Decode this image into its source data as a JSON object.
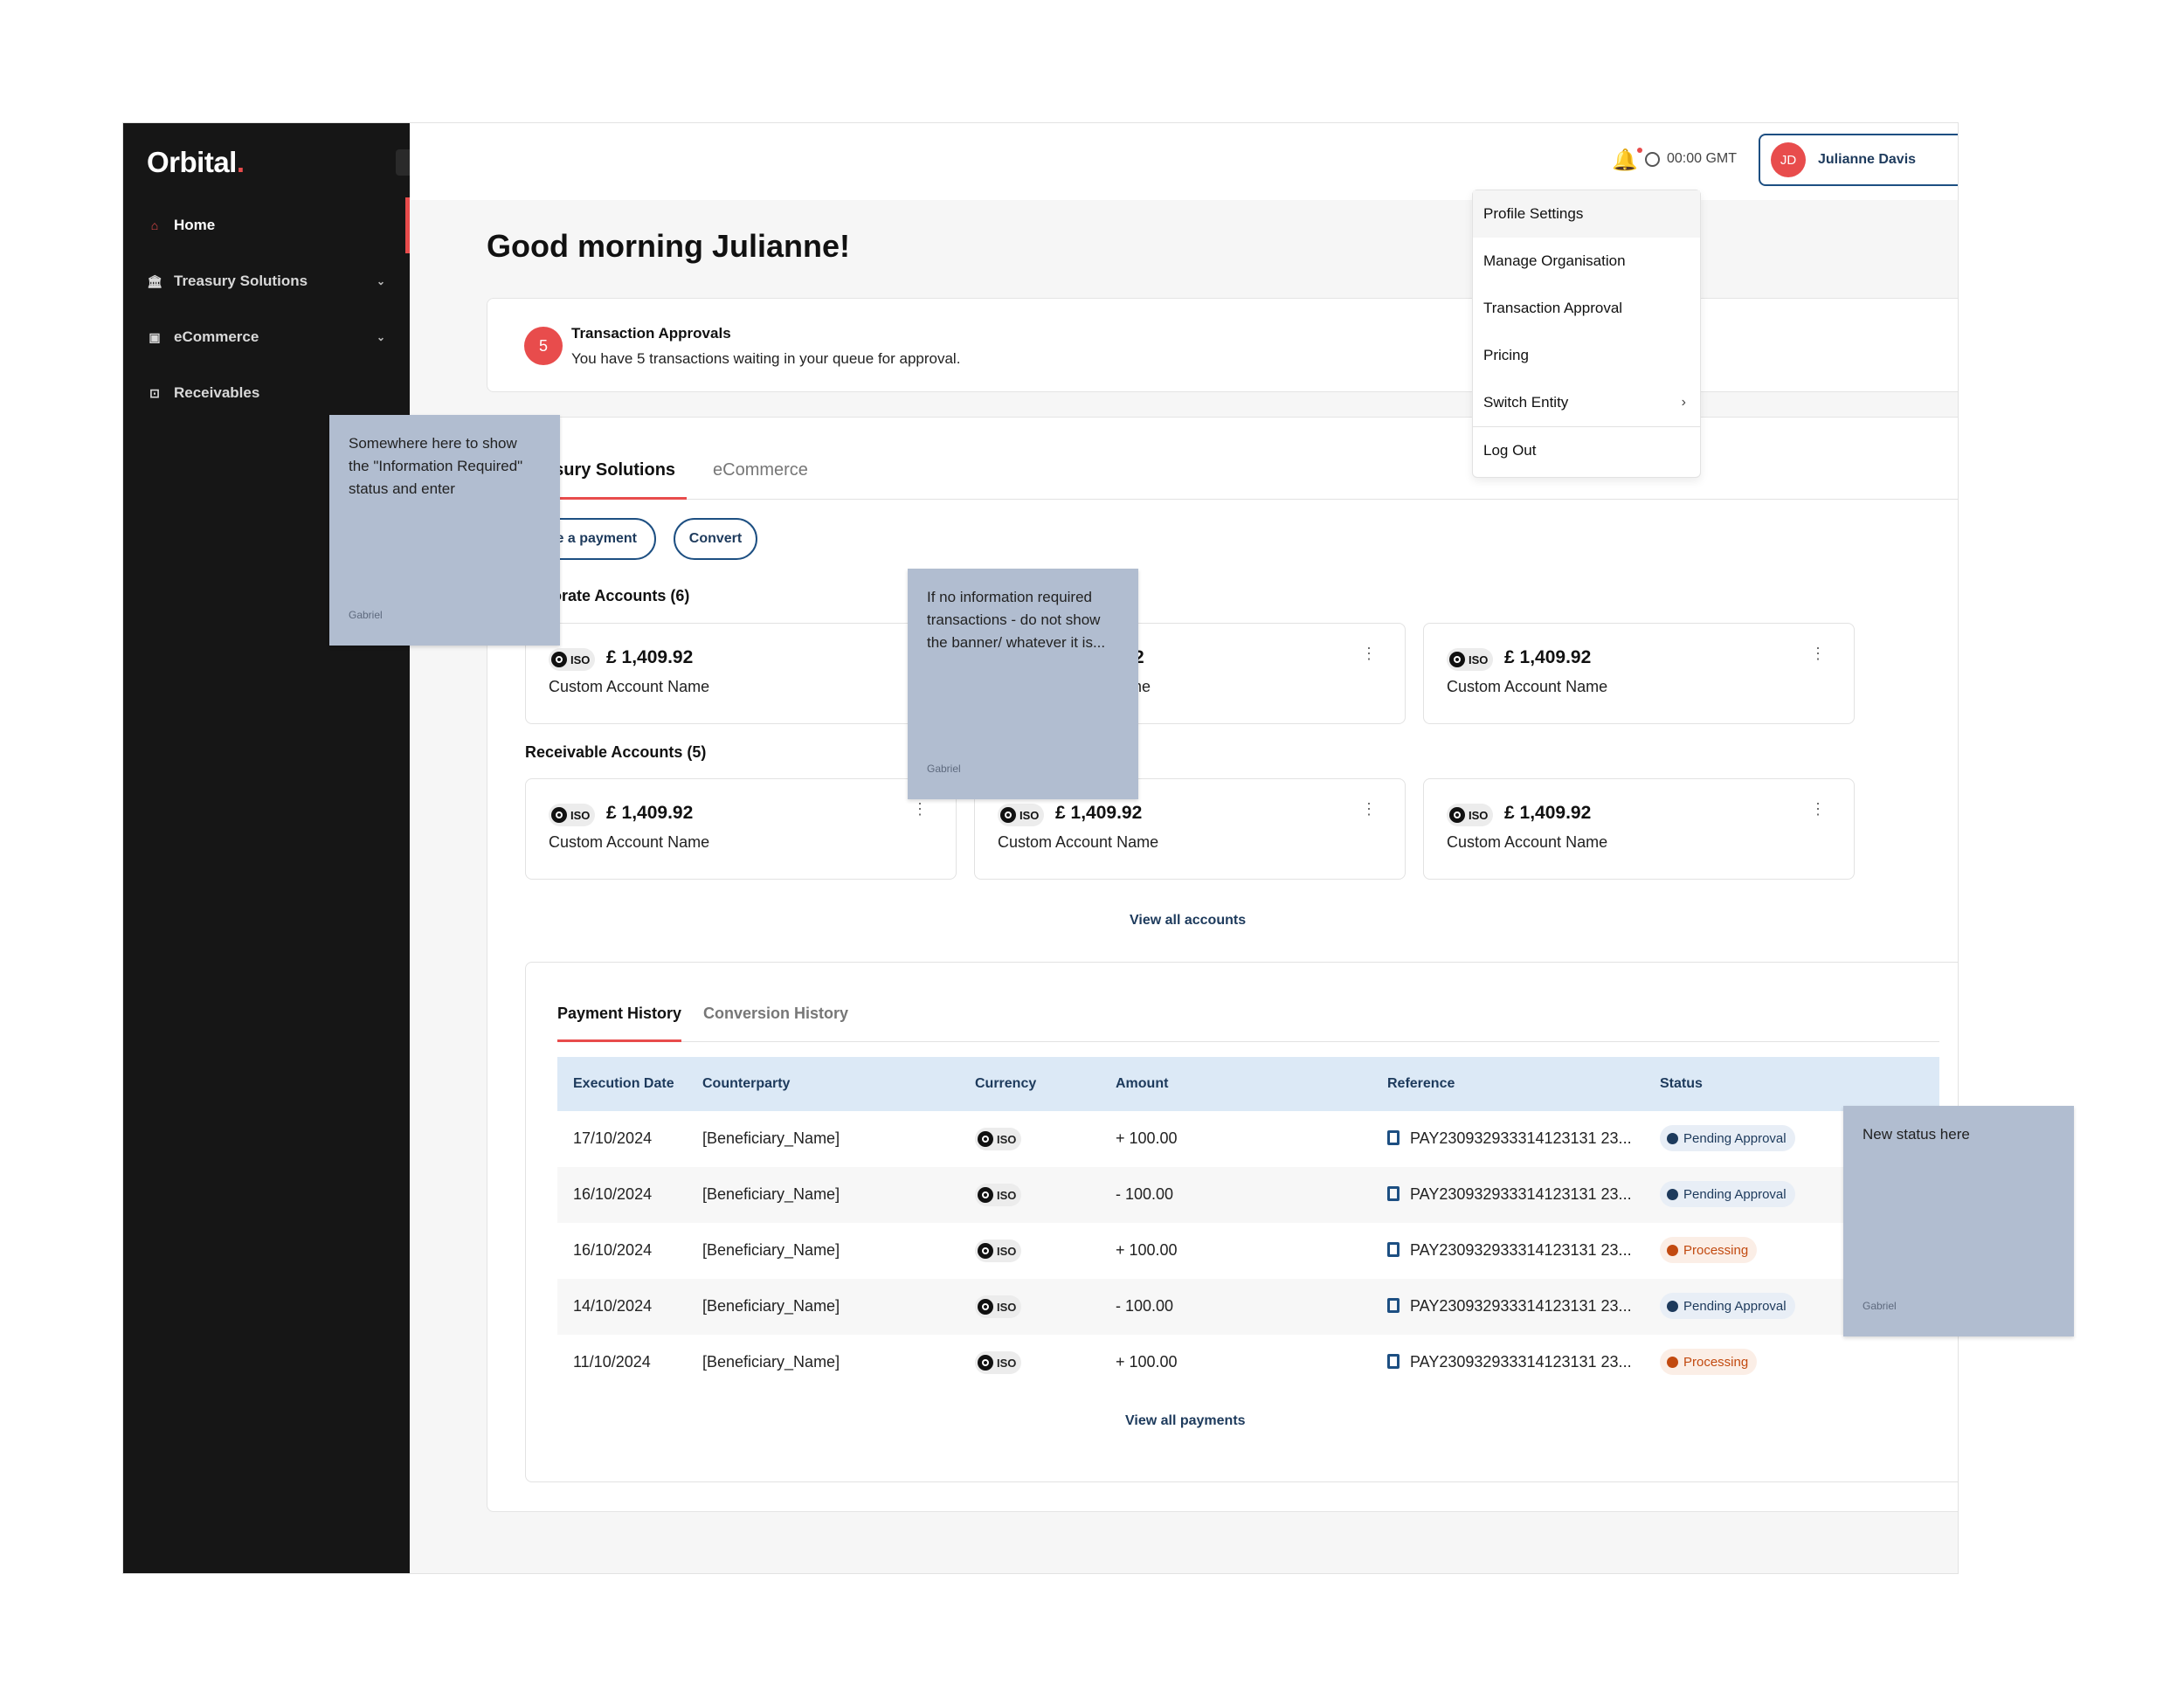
{
  "sidebar": {
    "logo": "Orbital",
    "logo_dot": ".",
    "items": [
      {
        "label": "Home",
        "icon": "home-icon"
      },
      {
        "label": "Treasury Solutions",
        "icon": "bank-icon"
      },
      {
        "label": "eCommerce",
        "icon": "bag-icon"
      },
      {
        "label": "Receivables",
        "icon": "inbox-icon"
      }
    ]
  },
  "header": {
    "time": "00:00 GMT",
    "user_initials": "JD",
    "user_name": "Julianne Davis"
  },
  "user_menu": {
    "items": [
      "Profile Settings",
      "Manage Organisation",
      "Transaction Approval",
      "Pricing",
      "Switch Entity",
      "Log Out"
    ]
  },
  "main": {
    "greeting": "Good morning Julianne!",
    "approvals": {
      "count": "5",
      "title": "Transaction Approvals",
      "subtitle": "You have 5 transactions waiting in your queue for approval."
    },
    "tabs": [
      "asury Solutions",
      "eCommerce"
    ],
    "actions": [
      "ake a payment",
      "Convert"
    ],
    "corporate_label": "porate Accounts (6)",
    "receivable_label": "Receivable Accounts (5)",
    "accounts": {
      "iso": "ISO",
      "corporate": [
        {
          "balance": "£ 1,409.92",
          "name": "Custom Account Name"
        },
        {
          "balance": "2",
          "name": "ame"
        },
        {
          "balance": "£ 1,409.92",
          "name": "Custom Account Name"
        }
      ],
      "receivable": [
        {
          "balance": "£ 1,409.92",
          "name": "Custom Account Name"
        },
        {
          "balance": "£ 1,409.92",
          "name": "Custom Account Name"
        },
        {
          "balance": "£ 1,409.92",
          "name": "Custom Account Name"
        }
      ]
    },
    "view_all_accounts": "View all accounts"
  },
  "history": {
    "tabs": [
      "Payment History",
      "Conversion History"
    ],
    "columns": [
      "Execution Date",
      "Counterparty",
      "Currency",
      "Amount",
      "Reference",
      "Status"
    ],
    "rows": [
      {
        "date": "17/10/2024",
        "counterparty": "[Beneficiary_Name]",
        "currency": "ISO",
        "amount": "+ 100.00",
        "reference": "PAY230932933314123131 23...",
        "status": "Pending Approval"
      },
      {
        "date": "16/10/2024",
        "counterparty": "[Beneficiary_Name]",
        "currency": "ISO",
        "amount": "- 100.00",
        "reference": "PAY230932933314123131 23...",
        "status": "Pending Approval"
      },
      {
        "date": "16/10/2024",
        "counterparty": "[Beneficiary_Name]",
        "currency": "ISO",
        "amount": "+ 100.00",
        "reference": "PAY230932933314123131 23...",
        "status": "Processing"
      },
      {
        "date": "14/10/2024",
        "counterparty": "[Beneficiary_Name]",
        "currency": "ISO",
        "amount": "- 100.00",
        "reference": "PAY230932933314123131 23...",
        "status": "Pending Approval"
      },
      {
        "date": "11/10/2024",
        "counterparty": "[Beneficiary_Name]",
        "currency": "ISO",
        "amount": "+ 100.00",
        "reference": "PAY230932933314123131 23...",
        "status": "Processing"
      }
    ],
    "view_all_payments": "View all payments"
  },
  "notes": [
    {
      "text": "Somewhere here to show the \"Information Required\" status and enter",
      "author": "Gabriel"
    },
    {
      "text": "If no information required transactions - do not show the banner/ whatever it is...",
      "author": "Gabriel"
    },
    {
      "text": "New status here",
      "author": "Gabriel"
    }
  ],
  "colors": {
    "accent": "#e84c4c",
    "navy": "#1d3a5c",
    "sidebar": "#161616",
    "note": "#b1bdd0"
  }
}
